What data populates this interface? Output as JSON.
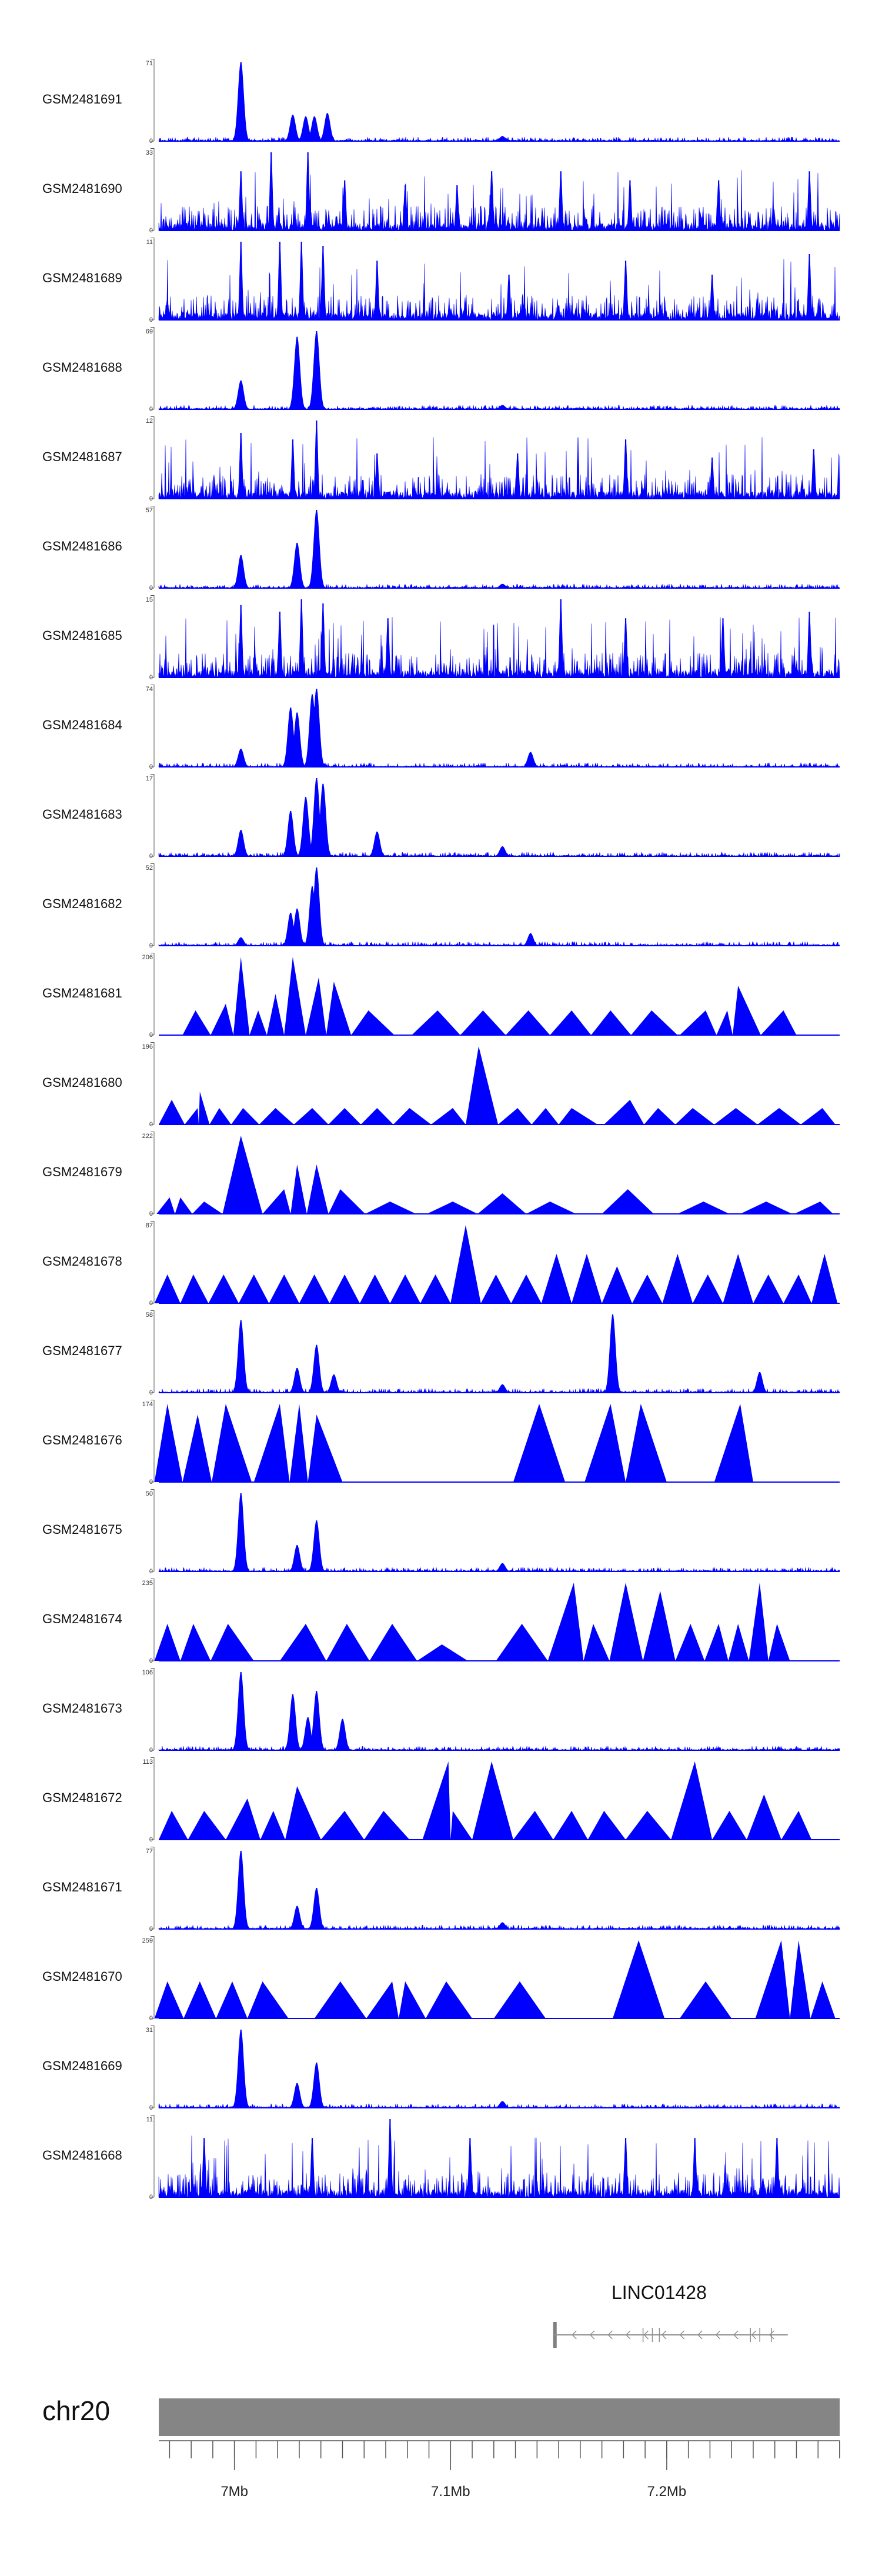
{
  "chart_data": {
    "type": "area",
    "chromosome": "chr20",
    "x_range": [
      6.965,
      7.28
    ],
    "x_unit": "Mb",
    "color": "#0000ff",
    "x_ticks": [
      {
        "value": 7.0,
        "label": "7Mb"
      },
      {
        "value": 7.1,
        "label": "7.1Mb"
      },
      {
        "value": 7.2,
        "label": "7.2Mb"
      }
    ],
    "gene": {
      "name": "LINC01428",
      "start": 7.148,
      "end": 7.256,
      "strand": "-"
    },
    "tracks": [
      {
        "name": "GSM2481691",
        "ymin": "0",
        "ymax": "71",
        "style": "dense",
        "peaks": [
          [
            7.003,
            0.96
          ],
          [
            7.027,
            0.32
          ],
          [
            7.033,
            0.3
          ],
          [
            7.037,
            0.3
          ],
          [
            7.043,
            0.34
          ],
          [
            7.124,
            0.06
          ]
        ]
      },
      {
        "name": "GSM2481690",
        "ymin": "0",
        "ymax": "33",
        "style": "spiky",
        "peaks": [
          [
            7.003,
            0.72
          ],
          [
            7.017,
            0.95
          ],
          [
            7.034,
            0.95
          ],
          [
            7.051,
            0.61
          ],
          [
            7.079,
            0.55
          ],
          [
            7.103,
            0.55
          ],
          [
            7.119,
            0.72
          ],
          [
            7.151,
            0.72
          ],
          [
            7.183,
            0.61
          ],
          [
            7.224,
            0.61
          ],
          [
            7.266,
            0.72
          ]
        ]
      },
      {
        "name": "GSM2481689",
        "ymin": "0",
        "ymax": "11",
        "style": "spiky",
        "peaks": [
          [
            7.003,
            0.95
          ],
          [
            7.021,
            0.95
          ],
          [
            7.031,
            0.95
          ],
          [
            7.041,
            0.9
          ],
          [
            7.066,
            0.72
          ],
          [
            7.127,
            0.55
          ],
          [
            7.181,
            0.72
          ],
          [
            7.221,
            0.55
          ],
          [
            7.266,
            0.8
          ]
        ]
      },
      {
        "name": "GSM2481688",
        "ymin": "0",
        "ymax": "69",
        "style": "dense",
        "peaks": [
          [
            7.003,
            0.35
          ],
          [
            7.029,
            0.88
          ],
          [
            7.038,
            0.95
          ],
          [
            7.124,
            0.05
          ]
        ]
      },
      {
        "name": "GSM2481687",
        "ymin": "0",
        "ymax": "12",
        "style": "spiky",
        "peaks": [
          [
            7.003,
            0.8
          ],
          [
            7.027,
            0.72
          ],
          [
            7.038,
            0.95
          ],
          [
            7.066,
            0.55
          ],
          [
            7.131,
            0.55
          ],
          [
            7.181,
            0.72
          ],
          [
            7.221,
            0.5
          ],
          [
            7.268,
            0.6
          ]
        ]
      },
      {
        "name": "GSM2481686",
        "ymin": "0",
        "ymax": "57",
        "style": "dense",
        "peaks": [
          [
            7.003,
            0.4
          ],
          [
            7.029,
            0.55
          ],
          [
            7.038,
            0.95
          ],
          [
            7.124,
            0.05
          ]
        ]
      },
      {
        "name": "GSM2481685",
        "ymin": "0",
        "ymax": "15",
        "style": "spiky",
        "peaks": [
          [
            7.003,
            0.88
          ],
          [
            7.021,
            0.8
          ],
          [
            7.031,
            0.95
          ],
          [
            7.041,
            0.9
          ],
          [
            7.071,
            0.72
          ],
          [
            7.151,
            0.95
          ],
          [
            7.181,
            0.72
          ],
          [
            7.226,
            0.72
          ],
          [
            7.266,
            0.8
          ]
        ]
      },
      {
        "name": "GSM2481684",
        "ymin": "0",
        "ymax": "74",
        "style": "dense",
        "peaks": [
          [
            7.003,
            0.22
          ],
          [
            7.026,
            0.72
          ],
          [
            7.029,
            0.66
          ],
          [
            7.036,
            0.88
          ],
          [
            7.038,
            0.95
          ],
          [
            7.137,
            0.18
          ]
        ]
      },
      {
        "name": "GSM2481683",
        "ymin": "0",
        "ymax": "17",
        "style": "dense",
        "peaks": [
          [
            7.003,
            0.32
          ],
          [
            7.026,
            0.55
          ],
          [
            7.033,
            0.72
          ],
          [
            7.038,
            0.95
          ],
          [
            7.041,
            0.88
          ],
          [
            7.066,
            0.3
          ],
          [
            7.124,
            0.12
          ]
        ]
      },
      {
        "name": "GSM2481682",
        "ymin": "0",
        "ymax": "52",
        "style": "dense",
        "peaks": [
          [
            7.003,
            0.1
          ],
          [
            7.026,
            0.4
          ],
          [
            7.029,
            0.45
          ],
          [
            7.036,
            0.72
          ],
          [
            7.038,
            0.95
          ],
          [
            7.137,
            0.15
          ]
        ]
      },
      {
        "name": "GSM2481681",
        "ymin": "0",
        "ymax": "206",
        "style": "triangles",
        "peaks": [
          [
            6.982,
            0.3
          ],
          [
            6.996,
            0.38
          ],
          [
            7.003,
            0.95
          ],
          [
            7.011,
            0.3
          ],
          [
            7.019,
            0.5
          ],
          [
            7.027,
            0.95
          ],
          [
            7.039,
            0.7
          ],
          [
            7.046,
            0.65
          ],
          [
            7.062,
            0.3
          ],
          [
            7.094,
            0.3
          ],
          [
            7.115,
            0.3
          ],
          [
            7.136,
            0.3
          ],
          [
            7.156,
            0.3
          ],
          [
            7.174,
            0.3
          ],
          [
            7.193,
            0.3
          ],
          [
            7.218,
            0.3
          ],
          [
            7.228,
            0.3
          ],
          [
            7.233,
            0.6
          ],
          [
            7.254,
            0.3
          ]
        ]
      },
      {
        "name": "GSM2481680",
        "ymin": "0",
        "ymax": "196",
        "style": "triangles",
        "peaks": [
          [
            6.971,
            0.3
          ],
          [
            6.983,
            0.2
          ],
          [
            6.984,
            0.4
          ],
          [
            6.993,
            0.2
          ],
          [
            7.004,
            0.2
          ],
          [
            7.019,
            0.2
          ],
          [
            7.036,
            0.2
          ],
          [
            7.051,
            0.2
          ],
          [
            7.066,
            0.2
          ],
          [
            7.081,
            0.2
          ],
          [
            7.101,
            0.2
          ],
          [
            7.113,
            0.95
          ],
          [
            7.131,
            0.2
          ],
          [
            7.144,
            0.2
          ],
          [
            7.156,
            0.2
          ],
          [
            7.183,
            0.3
          ],
          [
            7.196,
            0.2
          ],
          [
            7.212,
            0.2
          ],
          [
            7.232,
            0.2
          ],
          [
            7.252,
            0.2
          ],
          [
            7.272,
            0.2
          ]
        ]
      },
      {
        "name": "GSM2481679",
        "ymin": "0",
        "ymax": "222",
        "style": "triangles",
        "peaks": [
          [
            6.97,
            0.2
          ],
          [
            6.975,
            0.2
          ],
          [
            6.986,
            0.15
          ],
          [
            7.003,
            0.95
          ],
          [
            7.023,
            0.3
          ],
          [
            7.029,
            0.6
          ],
          [
            7.038,
            0.6
          ],
          [
            7.049,
            0.3
          ],
          [
            7.072,
            0.15
          ],
          [
            7.101,
            0.15
          ],
          [
            7.124,
            0.25
          ],
          [
            7.146,
            0.15
          ],
          [
            7.182,
            0.3
          ],
          [
            7.217,
            0.15
          ],
          [
            7.246,
            0.15
          ],
          [
            7.271,
            0.15
          ]
        ]
      },
      {
        "name": "GSM2481678",
        "ymin": "0",
        "ymax": "87",
        "style": "triangles",
        "peaks": [
          [
            6.969,
            0.35
          ],
          [
            6.981,
            0.35
          ],
          [
            6.995,
            0.35
          ],
          [
            7.009,
            0.35
          ],
          [
            7.023,
            0.35
          ],
          [
            7.037,
            0.35
          ],
          [
            7.051,
            0.35
          ],
          [
            7.065,
            0.35
          ],
          [
            7.079,
            0.35
          ],
          [
            7.093,
            0.35
          ],
          [
            7.107,
            0.95
          ],
          [
            7.121,
            0.35
          ],
          [
            7.135,
            0.35
          ],
          [
            7.149,
            0.6
          ],
          [
            7.163,
            0.6
          ],
          [
            7.177,
            0.45
          ],
          [
            7.191,
            0.35
          ],
          [
            7.205,
            0.6
          ],
          [
            7.219,
            0.35
          ],
          [
            7.233,
            0.6
          ],
          [
            7.247,
            0.35
          ],
          [
            7.261,
            0.35
          ],
          [
            7.273,
            0.6
          ]
        ]
      },
      {
        "name": "GSM2481677",
        "ymin": "0",
        "ymax": "58",
        "style": "dense",
        "peaks": [
          [
            7.003,
            0.88
          ],
          [
            7.029,
            0.3
          ],
          [
            7.038,
            0.58
          ],
          [
            7.046,
            0.22
          ],
          [
            7.124,
            0.1
          ],
          [
            7.175,
            0.95
          ],
          [
            7.243,
            0.25
          ]
        ]
      },
      {
        "name": "GSM2481676",
        "ymin": "0",
        "ymax": "174",
        "style": "triangles",
        "peaks": [
          [
            6.969,
            0.95
          ],
          [
            6.983,
            0.82
          ],
          [
            6.996,
            0.95
          ],
          [
            7.021,
            0.95
          ],
          [
            7.03,
            0.95
          ],
          [
            7.038,
            0.82
          ],
          [
            7.141,
            0.95
          ],
          [
            7.174,
            0.95
          ],
          [
            7.188,
            0.95
          ],
          [
            7.234,
            0.95
          ]
        ]
      },
      {
        "name": "GSM2481675",
        "ymin": "0",
        "ymax": "50",
        "style": "dense",
        "peaks": [
          [
            7.003,
            0.95
          ],
          [
            7.029,
            0.32
          ],
          [
            7.038,
            0.62
          ],
          [
            7.124,
            0.1
          ]
        ]
      },
      {
        "name": "GSM2481674",
        "ymin": "0",
        "ymax": "235",
        "style": "triangles",
        "peaks": [
          [
            6.969,
            0.45
          ],
          [
            6.981,
            0.45
          ],
          [
            6.997,
            0.45
          ],
          [
            7.033,
            0.45
          ],
          [
            7.052,
            0.45
          ],
          [
            7.073,
            0.45
          ],
          [
            7.096,
            0.2
          ],
          [
            7.133,
            0.45
          ],
          [
            7.157,
            0.95
          ],
          [
            7.166,
            0.45
          ],
          [
            7.181,
            0.95
          ],
          [
            7.197,
            0.85
          ],
          [
            7.211,
            0.45
          ],
          [
            7.224,
            0.45
          ],
          [
            7.233,
            0.45
          ],
          [
            7.243,
            0.95
          ],
          [
            7.251,
            0.45
          ]
        ]
      },
      {
        "name": "GSM2481673",
        "ymin": "0",
        "ymax": "106",
        "style": "dense",
        "peaks": [
          [
            7.003,
            0.95
          ],
          [
            7.027,
            0.68
          ],
          [
            7.034,
            0.4
          ],
          [
            7.038,
            0.72
          ],
          [
            7.05,
            0.38
          ]
        ]
      },
      {
        "name": "GSM2481672",
        "ymin": "0",
        "ymax": "113",
        "style": "triangles",
        "peaks": [
          [
            6.971,
            0.35
          ],
          [
            6.986,
            0.35
          ],
          [
            7.006,
            0.5
          ],
          [
            7.018,
            0.35
          ],
          [
            7.029,
            0.65
          ],
          [
            7.051,
            0.35
          ],
          [
            7.069,
            0.35
          ],
          [
            7.099,
            0.95
          ],
          [
            7.101,
            0.35
          ],
          [
            7.119,
            0.95
          ],
          [
            7.139,
            0.35
          ],
          [
            7.156,
            0.35
          ],
          [
            7.171,
            0.35
          ],
          [
            7.191,
            0.35
          ],
          [
            7.213,
            0.95
          ],
          [
            7.229,
            0.35
          ],
          [
            7.245,
            0.55
          ],
          [
            7.261,
            0.35
          ]
        ]
      },
      {
        "name": "GSM2481671",
        "ymin": "0",
        "ymax": "77",
        "style": "dense",
        "peaks": [
          [
            7.003,
            0.95
          ],
          [
            7.029,
            0.28
          ],
          [
            7.038,
            0.5
          ],
          [
            7.124,
            0.08
          ]
        ]
      },
      {
        "name": "GSM2481670",
        "ymin": "0",
        "ymax": "259",
        "style": "triangles",
        "peaks": [
          [
            6.969,
            0.45
          ],
          [
            6.984,
            0.45
          ],
          [
            6.999,
            0.45
          ],
          [
            7.013,
            0.45
          ],
          [
            7.049,
            0.45
          ],
          [
            7.073,
            0.45
          ],
          [
            7.079,
            0.45
          ],
          [
            7.098,
            0.45
          ],
          [
            7.132,
            0.45
          ],
          [
            7.187,
            0.95
          ],
          [
            7.218,
            0.45
          ],
          [
            7.253,
            0.95
          ],
          [
            7.261,
            0.95
          ],
          [
            7.272,
            0.45
          ]
        ]
      },
      {
        "name": "GSM2481669",
        "ymin": "0",
        "ymax": "31",
        "style": "dense",
        "peaks": [
          [
            7.003,
            0.95
          ],
          [
            7.029,
            0.3
          ],
          [
            7.038,
            0.55
          ],
          [
            7.124,
            0.08
          ]
        ]
      },
      {
        "name": "GSM2481668",
        "ymin": "0",
        "ymax": "11",
        "style": "spiky",
        "peaks": [
          [
            6.986,
            0.72
          ],
          [
            7.036,
            0.72
          ],
          [
            7.072,
            0.95
          ],
          [
            7.109,
            0.72
          ],
          [
            7.181,
            0.72
          ],
          [
            7.213,
            0.72
          ],
          [
            7.251,
            0.72
          ]
        ]
      }
    ]
  }
}
